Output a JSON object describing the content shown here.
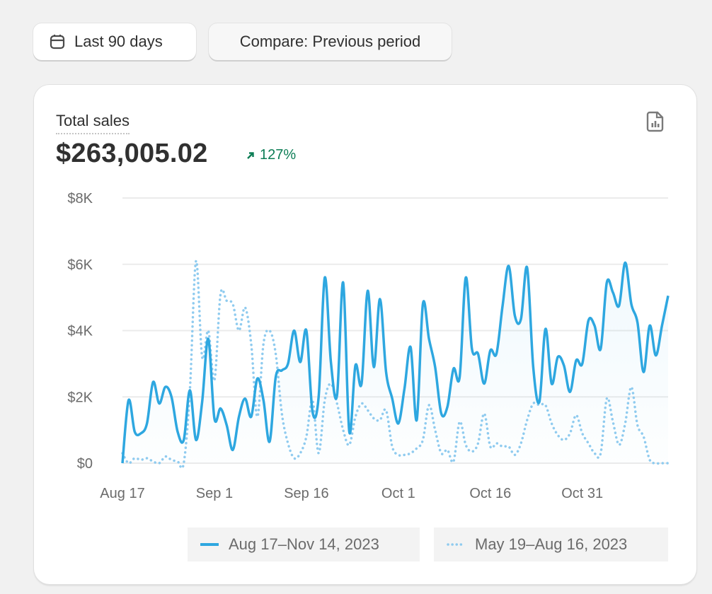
{
  "toolbar": {
    "range_label": "Last 90 days",
    "range_icon": "calendar-icon",
    "compare_label": "Compare: Previous period"
  },
  "card": {
    "title": "Total sales",
    "value": "$263,005.02",
    "delta": "127%",
    "delta_direction": "up",
    "delta_color": "#0c7d55",
    "action_icon": "report-icon"
  },
  "chart_data": {
    "type": "line",
    "y_ticks": [
      "$0",
      "$2K",
      "$4K",
      "$6K",
      "$8K"
    ],
    "ylim": [
      0,
      8000
    ],
    "x_ticks": [
      {
        "label": "Aug 17",
        "day": 0
      },
      {
        "label": "Sep 1",
        "day": 15
      },
      {
        "label": "Sep 16",
        "day": 30
      },
      {
        "label": "Oct 1",
        "day": 45
      },
      {
        "label": "Oct 16",
        "day": 60
      },
      {
        "label": "Oct 31",
        "day": 75
      }
    ],
    "grid": true,
    "legend_placement": "bottom-right",
    "series": [
      {
        "name": "Aug 17–Nov 14, 2023",
        "style": "solid",
        "color": "#2ea7e0",
        "values": [
          0,
          1900,
          950,
          900,
          1200,
          2450,
          1800,
          2300,
          2000,
          950,
          700,
          2200,
          700,
          1850,
          3750,
          1350,
          1650,
          1150,
          400,
          1400,
          1950,
          1400,
          2550,
          1900,
          650,
          2600,
          2800,
          3000,
          4000,
          3050,
          4000,
          1550,
          2000,
          5600,
          3050,
          2050,
          5450,
          950,
          2950,
          2400,
          5200,
          2900,
          4950,
          2750,
          1950,
          1200,
          2250,
          3500,
          1300,
          4800,
          3750,
          2900,
          1500,
          1700,
          2850,
          2600,
          5600,
          3450,
          3300,
          2400,
          3400,
          3300,
          4750,
          5950,
          4450,
          4350,
          5900,
          2900,
          1850,
          4050,
          2400,
          3200,
          2950,
          2150,
          3100,
          3000,
          4300,
          4150,
          3450,
          5450,
          5150,
          4750,
          6050,
          4800,
          4250,
          2750,
          4150,
          3250,
          4150,
          5050
        ]
      },
      {
        "name": "May 19–Aug 16, 2023",
        "style": "dotted",
        "color": "#8fcbef",
        "values": [
          300,
          0,
          150,
          100,
          150,
          50,
          0,
          200,
          100,
          50,
          0,
          2200,
          6100,
          3200,
          4000,
          2500,
          5100,
          4900,
          4800,
          4000,
          4700,
          3600,
          1400,
          3600,
          4000,
          3300,
          1500,
          600,
          150,
          300,
          800,
          1900,
          300,
          1900,
          2400,
          1800,
          1000,
          550,
          1400,
          1800,
          1600,
          1350,
          1300,
          1600,
          500,
          250,
          250,
          300,
          450,
          700,
          1750,
          1000,
          300,
          400,
          50,
          1250,
          550,
          350,
          600,
          1500,
          500,
          600,
          500,
          500,
          250,
          600,
          1300,
          1800,
          1750,
          1750,
          1200,
          850,
          700,
          900,
          1450,
          900,
          600,
          300,
          300,
          1950,
          1250,
          550,
          1200,
          2300,
          1150,
          800,
          100,
          0,
          0,
          0
        ]
      }
    ]
  }
}
